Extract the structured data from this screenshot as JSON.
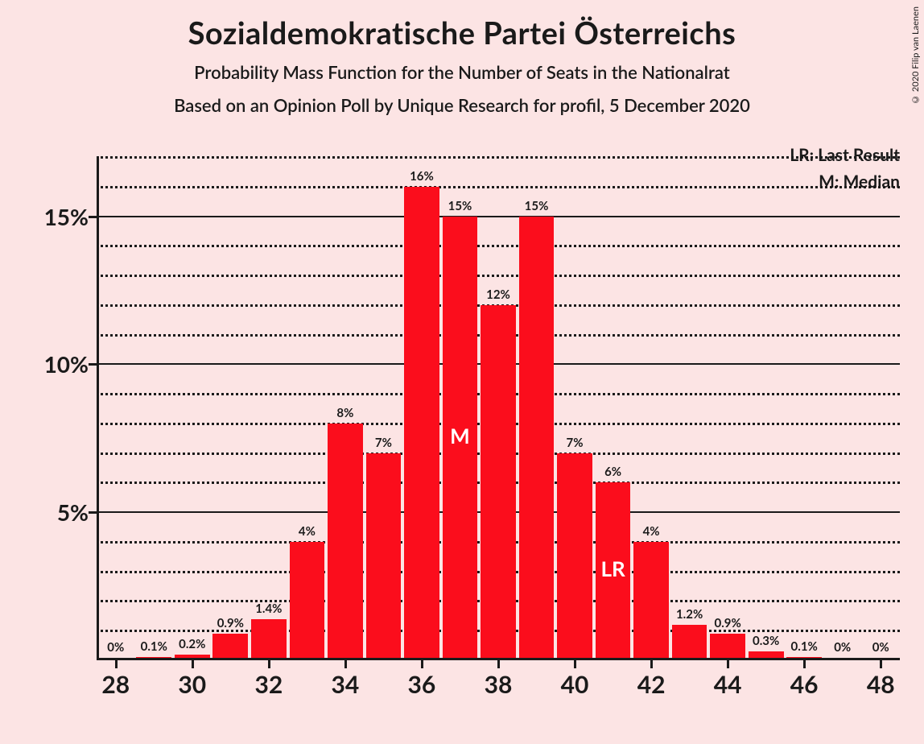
{
  "copyright": "© 2020 Filip van Laenen",
  "title": "Sozialdemokratische Partei Österreichs",
  "subtitle1": "Probability Mass Function for the Number of Seats in the Nationalrat",
  "subtitle2": "Based on an Opinion Poll by Unique Research for profil, 5 December 2020",
  "legend": {
    "lr": "LR: Last Result",
    "m": "M: Median"
  },
  "chart": {
    "type": "bar",
    "background_color": "#fce4e4",
    "bar_color": "#fb0d1c",
    "axis_color": "#1a1a1a",
    "text_color": "#1a1a1a",
    "marker_text_color": "#ffffff",
    "ylim": [
      0,
      17
    ],
    "y_ticks": [
      5,
      10,
      15
    ],
    "y_minor_step": 1,
    "xlim": [
      27.5,
      48.5
    ],
    "x_ticks": [
      28,
      30,
      32,
      34,
      36,
      38,
      40,
      42,
      44,
      46,
      48
    ],
    "title_fontsize": 38,
    "subtitle_fontsize": 22,
    "axis_label_fontsize": 28,
    "bar_label_fontsize": 15,
    "bar_width": 0.92,
    "bars": [
      {
        "x": 28,
        "value": 0,
        "label": "0%"
      },
      {
        "x": 29,
        "value": 0.1,
        "label": "0.1%"
      },
      {
        "x": 30,
        "value": 0.2,
        "label": "0.2%"
      },
      {
        "x": 31,
        "value": 0.9,
        "label": "0.9%"
      },
      {
        "x": 32,
        "value": 1.4,
        "label": "1.4%"
      },
      {
        "x": 33,
        "value": 4,
        "label": "4%"
      },
      {
        "x": 34,
        "value": 8,
        "label": "8%"
      },
      {
        "x": 35,
        "value": 7,
        "label": "7%"
      },
      {
        "x": 36,
        "value": 16,
        "label": "16%"
      },
      {
        "x": 37,
        "value": 15,
        "label": "15%",
        "marker": "M"
      },
      {
        "x": 38,
        "value": 12,
        "label": "12%"
      },
      {
        "x": 39,
        "value": 15,
        "label": "15%"
      },
      {
        "x": 40,
        "value": 7,
        "label": "7%"
      },
      {
        "x": 41,
        "value": 6,
        "label": "6%",
        "marker": "LR"
      },
      {
        "x": 42,
        "value": 4,
        "label": "4%"
      },
      {
        "x": 43,
        "value": 1.2,
        "label": "1.2%"
      },
      {
        "x": 44,
        "value": 0.9,
        "label": "0.9%"
      },
      {
        "x": 45,
        "value": 0.3,
        "label": "0.3%"
      },
      {
        "x": 46,
        "value": 0.1,
        "label": "0.1%"
      },
      {
        "x": 47,
        "value": 0,
        "label": "0%"
      },
      {
        "x": 48,
        "value": 0,
        "label": "0%"
      }
    ]
  }
}
